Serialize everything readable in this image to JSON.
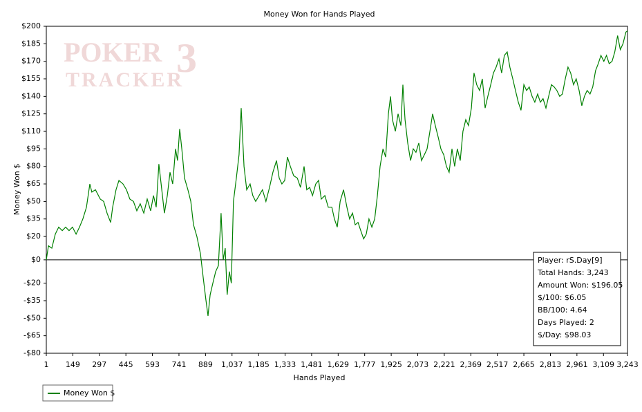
{
  "chart_data": {
    "type": "line",
    "title": "Money Won for Hands Played",
    "x_label": "Hands Played",
    "y_label": "Money Won $",
    "watermark": {
      "top": "POKER",
      "number": "3",
      "bottom": "TRACKER"
    },
    "series": [
      {
        "name": "Money Won $",
        "color": "#008000",
        "x": [
          1,
          13,
          32,
          51,
          70,
          90,
          109,
          128,
          147,
          167,
          186,
          205,
          225,
          244,
          255,
          275,
          302,
          321,
          340,
          360,
          371,
          390,
          406,
          429,
          448,
          467,
          487,
          506,
          525,
          545,
          564,
          583,
          599,
          614,
          629,
          645,
          660,
          676,
          691,
          706,
          722,
          733,
          745,
          757,
          772,
          791,
          807,
          822,
          841,
          861,
          876,
          892,
          903,
          915,
          930,
          946,
          961,
          976,
          988,
          999,
          1010,
          1022,
          1033,
          1045,
          1061,
          1076,
          1088,
          1104,
          1119,
          1138,
          1153,
          1169,
          1188,
          1207,
          1226,
          1246,
          1265,
          1285,
          1300,
          1315,
          1331,
          1346,
          1362,
          1381,
          1401,
          1419,
          1439,
          1454,
          1470,
          1486,
          1504,
          1520,
          1535,
          1555,
          1574,
          1594,
          1608,
          1624,
          1640,
          1659,
          1678,
          1693,
          1709,
          1724,
          1740,
          1755,
          1771,
          1786,
          1801,
          1817,
          1833,
          1848,
          1863,
          1879,
          1894,
          1909,
          1921,
          1932,
          1948,
          1963,
          1979,
          1990,
          2002,
          2017,
          2033,
          2048,
          2063,
          2079,
          2094,
          2110,
          2125,
          2141,
          2156,
          2171,
          2187,
          2202,
          2218,
          2233,
          2248,
          2264,
          2279,
          2294,
          2310,
          2325,
          2341,
          2356,
          2372,
          2387,
          2402,
          2418,
          2433,
          2449,
          2464,
          2480,
          2495,
          2510,
          2526,
          2541,
          2556,
          2572,
          2587,
          2603,
          2618,
          2634,
          2649,
          2665,
          2680,
          2695,
          2711,
          2726,
          2742,
          2757,
          2772,
          2788,
          2803,
          2819,
          2834,
          2849,
          2865,
          2880,
          2896,
          2911,
          2926,
          2942,
          2957,
          2973,
          2988,
          3003,
          3018,
          3034,
          3049,
          3065,
          3080,
          3095,
          3111,
          3126,
          3141,
          3157,
          3172,
          3188,
          3203,
          3218,
          3234,
          3243
        ],
        "values": [
          0,
          12,
          10,
          22,
          28,
          25,
          28,
          25,
          28,
          22,
          28,
          35,
          45,
          65,
          58,
          60,
          52,
          50,
          40,
          32,
          45,
          60,
          68,
          65,
          60,
          52,
          50,
          42,
          48,
          40,
          52,
          42,
          55,
          45,
          82,
          60,
          40,
          55,
          75,
          65,
          95,
          85,
          112,
          95,
          70,
          60,
          50,
          30,
          20,
          5,
          -15,
          -35,
          -48,
          -30,
          -20,
          -10,
          -5,
          40,
          0,
          10,
          -30,
          -10,
          -20,
          50,
          70,
          90,
          130,
          80,
          60,
          65,
          55,
          50,
          55,
          60,
          50,
          62,
          75,
          85,
          70,
          65,
          68,
          88,
          80,
          72,
          70,
          62,
          80,
          60,
          62,
          55,
          65,
          68,
          52,
          55,
          45,
          45,
          35,
          28,
          50,
          60,
          45,
          35,
          40,
          30,
          32,
          25,
          18,
          22,
          35,
          28,
          35,
          55,
          80,
          95,
          88,
          125,
          140,
          120,
          110,
          125,
          115,
          150,
          120,
          100,
          85,
          95,
          92,
          100,
          85,
          90,
          95,
          110,
          125,
          115,
          105,
          95,
          90,
          80,
          75,
          95,
          80,
          95,
          85,
          110,
          120,
          115,
          130,
          160,
          150,
          145,
          155,
          130,
          140,
          150,
          160,
          165,
          172,
          160,
          175,
          178,
          165,
          155,
          145,
          135,
          128,
          150,
          145,
          148,
          140,
          135,
          142,
          135,
          138,
          130,
          140,
          150,
          148,
          145,
          140,
          142,
          155,
          165,
          160,
          150,
          155,
          145,
          132,
          140,
          145,
          142,
          148,
          162,
          168,
          175,
          170,
          175,
          168,
          170,
          178,
          192,
          180,
          185,
          195,
          196.05
        ]
      }
    ],
    "xlim": [
      1,
      3243
    ],
    "xticks": [
      1,
      149,
      297,
      445,
      593,
      741,
      889,
      {
        "value": 1037,
        "label": "1,037"
      },
      {
        "value": 1185,
        "label": "1,185"
      },
      {
        "value": 1333,
        "label": "1,333"
      },
      {
        "value": 1481,
        "label": "1,481"
      },
      {
        "value": 1629,
        "label": "1,629"
      },
      {
        "value": 1777,
        "label": "1,777"
      },
      {
        "value": 1925,
        "label": "1,925"
      },
      {
        "value": 2073,
        "label": "2,073"
      },
      {
        "value": 2221,
        "label": "2,221"
      },
      {
        "value": 2369,
        "label": "2,369"
      },
      {
        "value": 2517,
        "label": "2,517"
      },
      {
        "value": 2665,
        "label": "2,665"
      },
      {
        "value": 2813,
        "label": "2,813"
      },
      {
        "value": 2961,
        "label": "2,961"
      },
      {
        "value": 3109,
        "label": "3,109"
      },
      {
        "value": 3243,
        "label": "3,243"
      }
    ],
    "ylim": [
      -80,
      200
    ],
    "yticks": [
      {
        "value": 200,
        "label": "$200"
      },
      {
        "value": 185,
        "label": "$185"
      },
      {
        "value": 170,
        "label": "$170"
      },
      {
        "value": 155,
        "label": "$155"
      },
      {
        "value": 140,
        "label": "$140"
      },
      {
        "value": 125,
        "label": "$125"
      },
      {
        "value": 110,
        "label": "$110"
      },
      {
        "value": 95,
        "label": "$95"
      },
      {
        "value": 80,
        "label": "$80"
      },
      {
        "value": 65,
        "label": "$65"
      },
      {
        "value": 50,
        "label": "$50"
      },
      {
        "value": 35,
        "label": "$35"
      },
      {
        "value": 20,
        "label": "$20"
      },
      {
        "value": 0,
        "label": "$0"
      },
      {
        "value": -20,
        "label": "-$20"
      },
      {
        "value": -35,
        "label": "-$35"
      },
      {
        "value": -50,
        "label": "-$50"
      },
      {
        "value": -65,
        "label": "-$65"
      },
      {
        "value": -80,
        "label": "-$80"
      }
    ],
    "grid": false,
    "zero_line": true,
    "info_box": [
      "Player: rS.Day[9]",
      "Total Hands: 3,243",
      "Amount Won: $196.05",
      "$/100: $6.05",
      "BB/100: 4.64",
      "Days Played: 2",
      "$/Day: $98.03"
    ]
  }
}
